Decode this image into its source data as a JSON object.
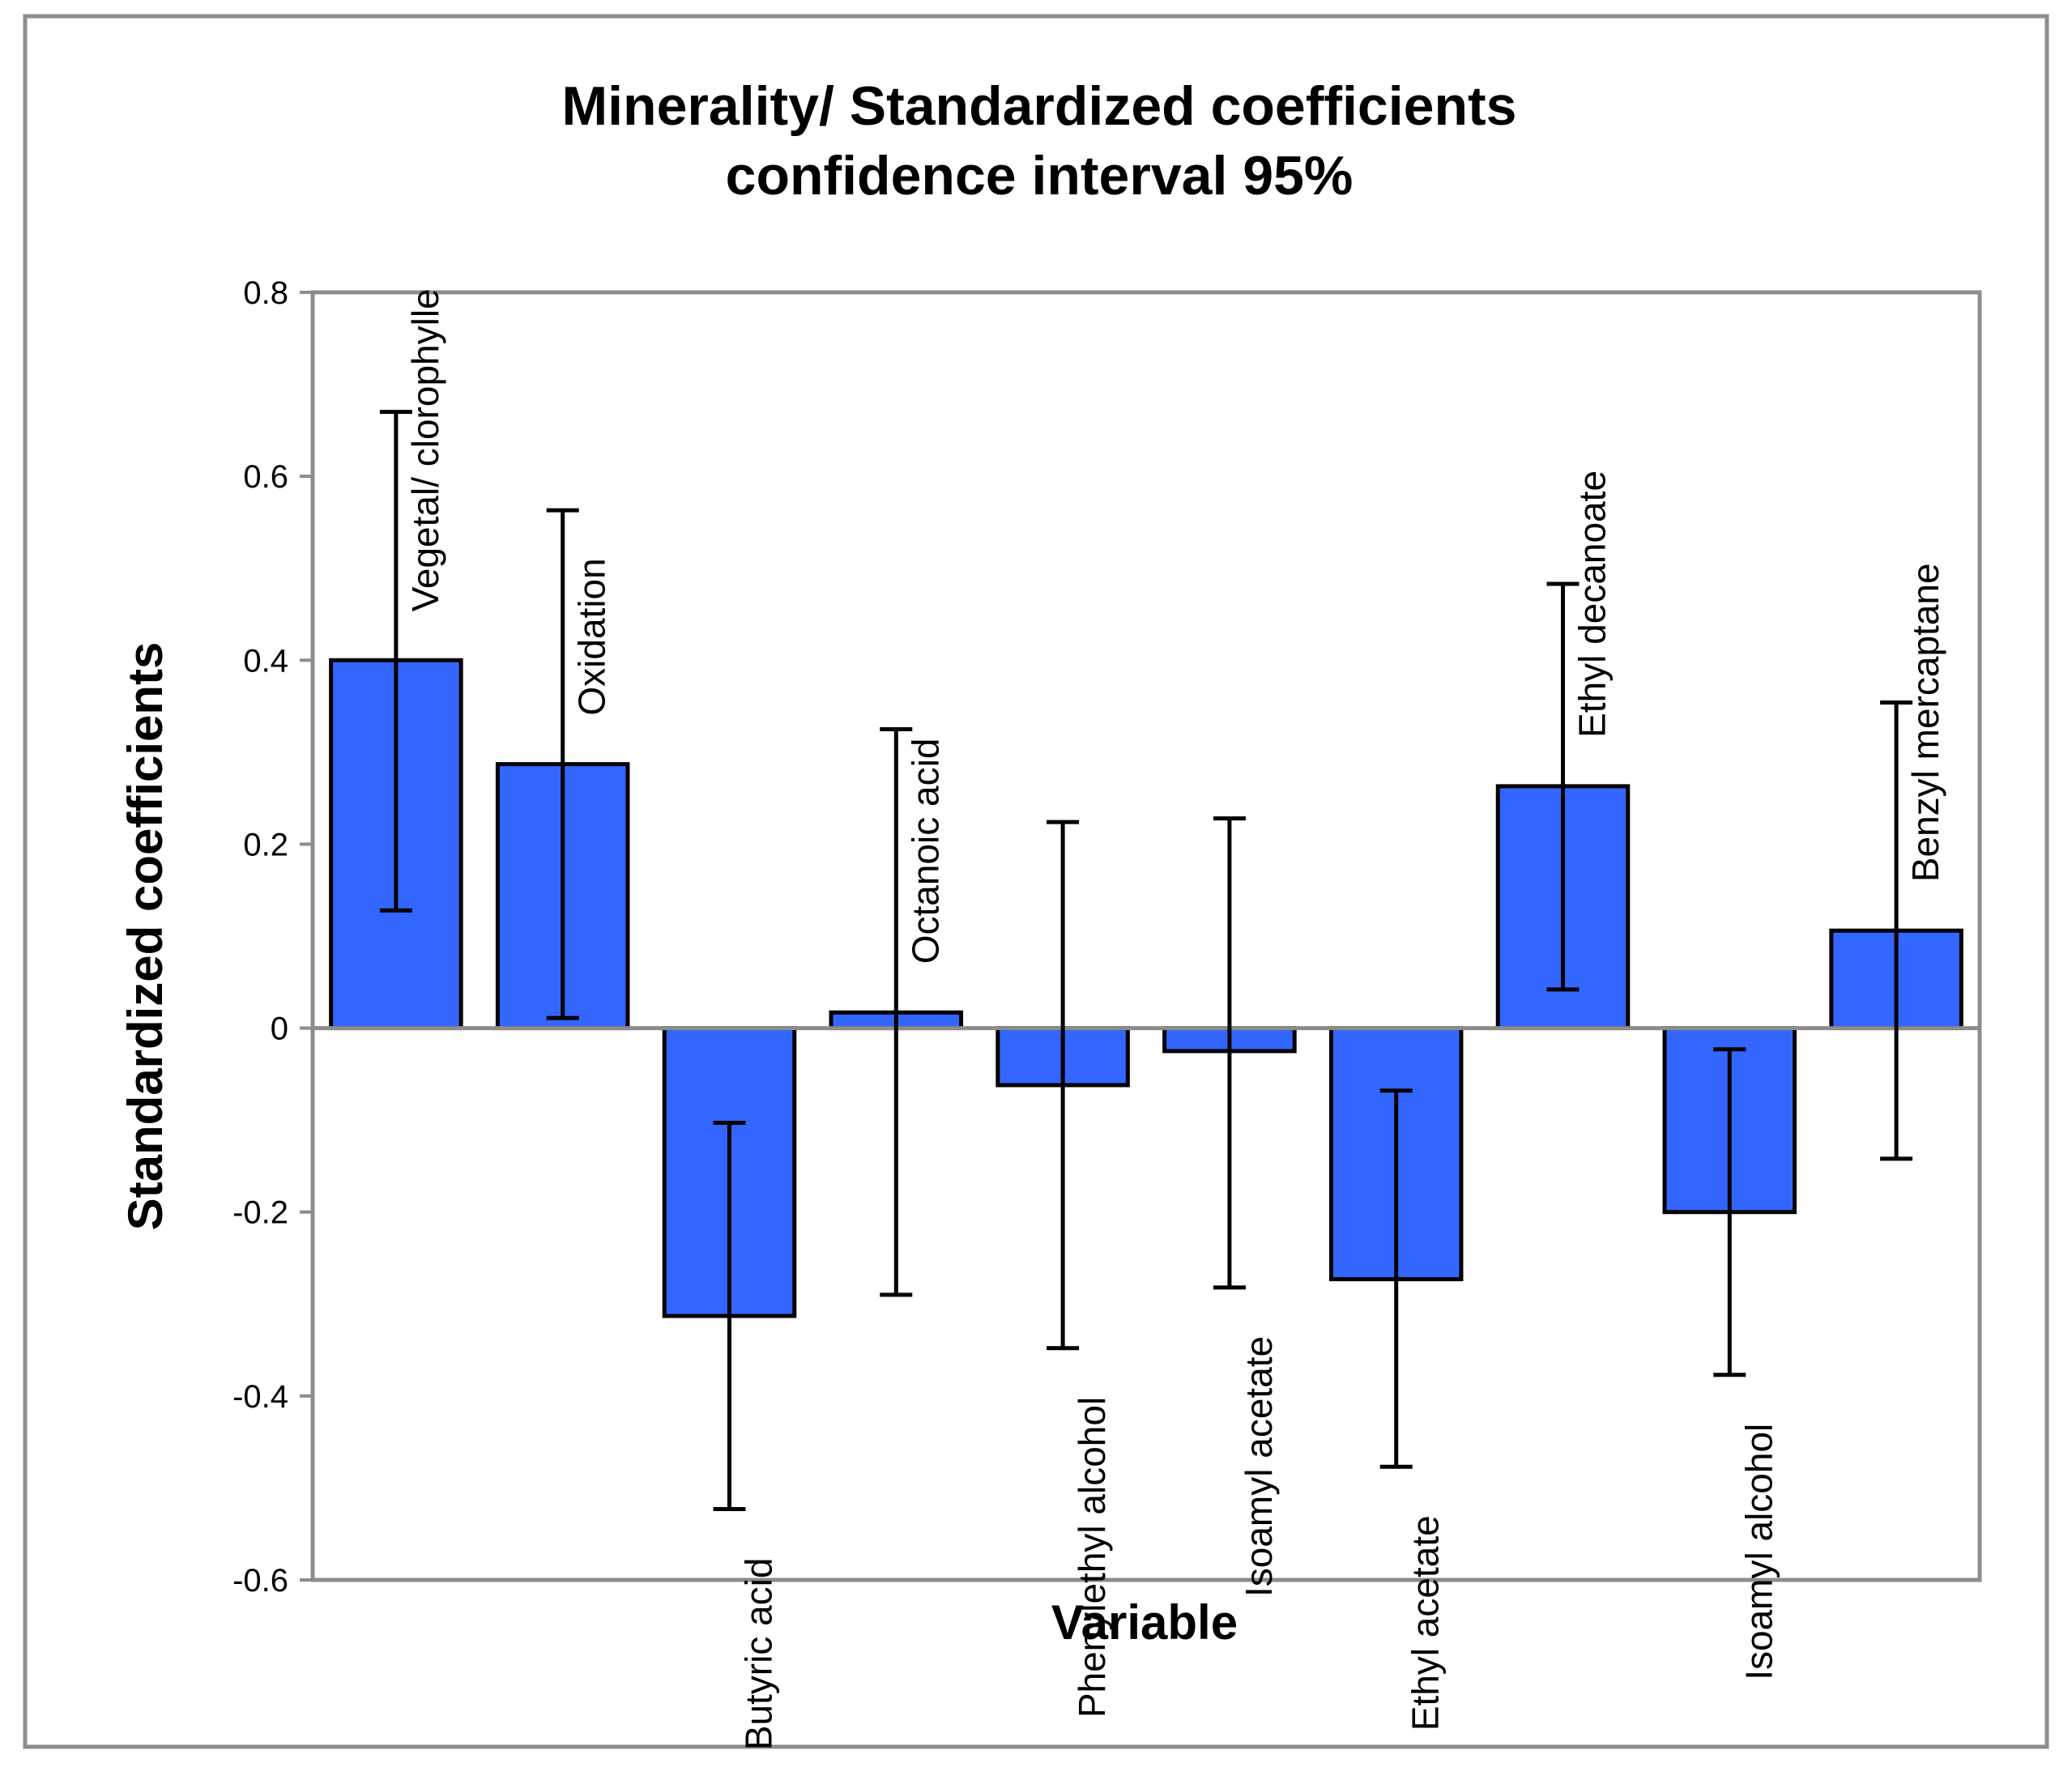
{
  "chart_data": {
    "type": "bar",
    "title": [
      "Minerality/ Standardized coefficients",
      "confidence interval 95%"
    ],
    "xlabel": "Variable",
    "ylabel": "Standardized coefficients",
    "ylim": [
      -0.6,
      0.8
    ],
    "yticks": [
      0.8,
      0.6,
      0.4,
      0.2,
      0,
      -0.2,
      -0.4,
      -0.6
    ],
    "ytick_labels": [
      "0.8",
      "0.6",
      "0.4",
      "0.2",
      "0",
      "-0.2",
      "-0.4",
      "-0.6"
    ],
    "grid": false,
    "legend": false,
    "bar_color": "#3366FF",
    "categories": [
      "Vegetal/ clorophylle",
      "Oxidation",
      "Butyric acid",
      "Octanoic acid",
      "Phenylethyl alcohol",
      "Isoamyl acetate",
      "Ethyl acetate",
      "Ethyl decanoate",
      "Isoamyl alcohol",
      "Benzyl mercaptane"
    ],
    "values": [
      0.4,
      0.287,
      -0.313,
      0.017,
      -0.062,
      -0.025,
      -0.273,
      0.263,
      -0.2,
      0.106
    ],
    "ci_lower": [
      0.128,
      0.011,
      -0.523,
      -0.29,
      -0.348,
      -0.282,
      -0.477,
      0.042,
      -0.377,
      -0.142
    ],
    "ci_upper": [
      0.67,
      0.563,
      -0.103,
      0.325,
      0.224,
      0.228,
      -0.068,
      0.483,
      -0.023,
      0.354
    ]
  }
}
